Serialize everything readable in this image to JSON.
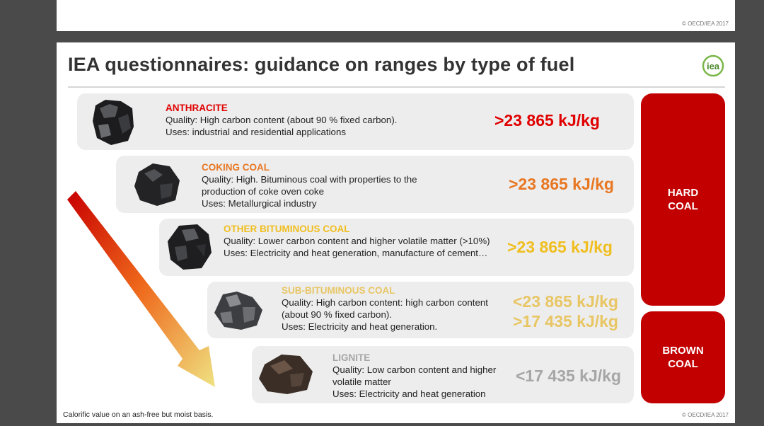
{
  "top_copyright": "© OECD/IEA 2017",
  "title": "IEA questionnaires: guidance on ranges by type of fuel",
  "logo_text": "iea",
  "fuels": [
    {
      "name": "ANTHRACITE",
      "quality": "Quality: High carbon content (about 90 % fixed carbon).",
      "uses": "Uses: industrial and residential applications",
      "value": ">23 865 kJ/kg",
      "color": "#e00000"
    },
    {
      "name": "COKING COAL",
      "quality": "Quality:  High. Bituminous coal with properties to the production of coke oven coke",
      "uses": "Uses: Metallurgical industry",
      "value": ">23 865 kJ/kg",
      "color": "#e87722"
    },
    {
      "name": "OTHER BITUMINOUS COAL",
      "quality": "Quality: Lower carbon content and higher volatile matter (>10%)",
      "uses": "Uses: Electricity and heat generation, manufacture of cement…",
      "value": ">23 865 kJ/kg",
      "color": "#f0be1e"
    },
    {
      "name": "SUB-BITUMINOUS COAL",
      "quality": "Quality: High carbon content: high carbon content (about 90 % fixed carbon).",
      "uses": "Uses: Electricity and heat generation.",
      "value": "<23 865 kJ/kg",
      "value2": ">17 435 kJ/kg",
      "color": "#e8c664"
    },
    {
      "name": "LIGNITE",
      "quality": "Quality: Low carbon content and higher volatile matter",
      "uses": "Uses: Electricity and heat generation",
      "value": "<17 435 kJ/kg",
      "color": "#a6a6a6"
    }
  ],
  "hard_coal": {
    "line1": "HARD",
    "line2": "COAL"
  },
  "brown_coal": {
    "line1": "BROWN",
    "line2": "COAL"
  },
  "badge_color": "#c20000",
  "footnote": "Calorific value on an ash-free but moist basis.",
  "bottom_copyright": "© OECD/IEA 2017"
}
